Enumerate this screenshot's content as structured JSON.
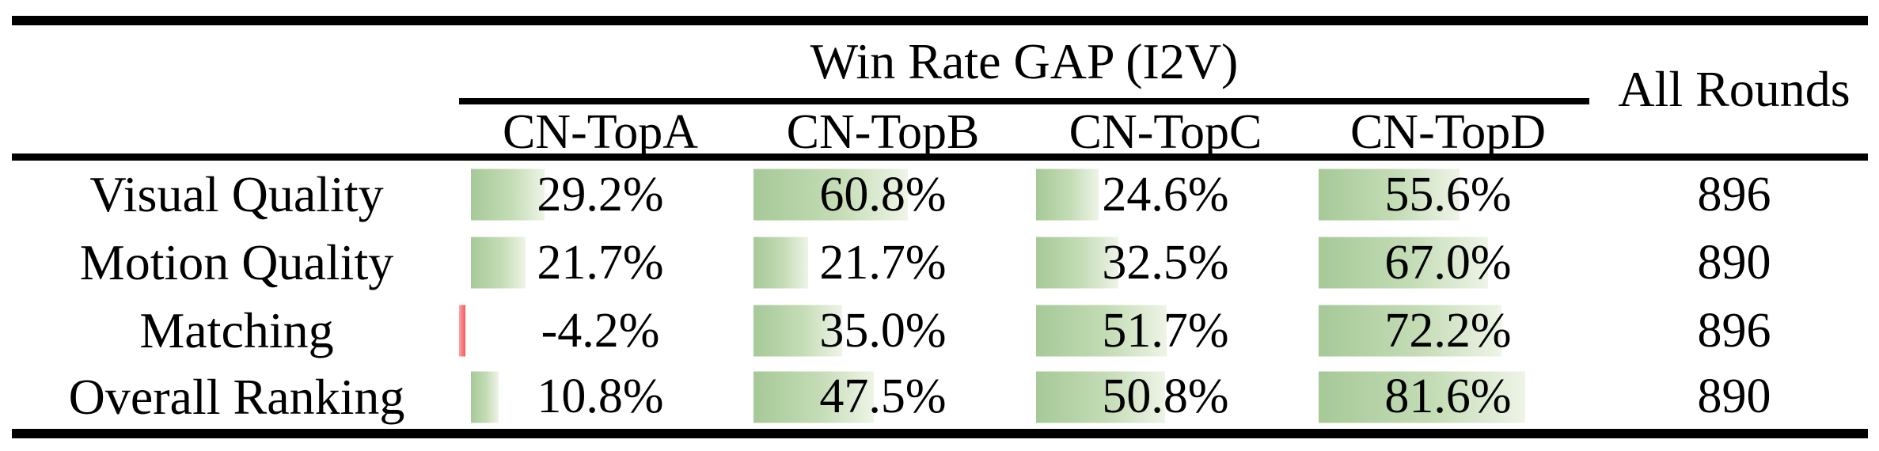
{
  "figure": {
    "group_header": "Win Rate GAP (I2V)",
    "all_rounds_header": "All Rounds",
    "method_columns": [
      "CN-TopA",
      "CN-TopB",
      "CN-TopC",
      "CN-TopD"
    ],
    "rows": [
      {
        "label": "Visual Quality",
        "values": [
          29.2,
          60.8,
          24.6,
          55.6
        ],
        "display": [
          "29.2%",
          "60.8%",
          "24.6%",
          "55.6%"
        ],
        "all_rounds": "896"
      },
      {
        "label": "Motion Quality",
        "values": [
          21.7,
          21.7,
          32.5,
          67.0
        ],
        "display": [
          "21.7%",
          "21.7%",
          "32.5%",
          "67.0%"
        ],
        "all_rounds": "890"
      },
      {
        "label": "Matching",
        "values": [
          -4.2,
          35.0,
          51.7,
          72.2
        ],
        "display": [
          "-4.2%",
          "35.0%",
          "51.7%",
          "72.2%"
        ],
        "all_rounds": "896"
      },
      {
        "label": "Overall Ranking",
        "values": [
          10.8,
          47.5,
          50.8,
          81.6
        ],
        "display": [
          "10.8%",
          "47.5%",
          "50.8%",
          "81.6%"
        ],
        "all_rounds": "890"
      }
    ],
    "colors": {
      "background": "#ffffff",
      "text": "#000000",
      "rule": "#000000",
      "bar_positive_start": "#a6c998",
      "bar_positive_end": "#eef4e7",
      "bar_negative_light": "#fba4a6",
      "bar_negative_dark": "#f8575b"
    }
  },
  "chart_data": {
    "type": "table",
    "title": "Win Rate GAP (I2V)",
    "columns": [
      "",
      "CN-TopA",
      "CN-TopB",
      "CN-TopC",
      "CN-TopD",
      "All Rounds"
    ],
    "rows": [
      [
        "Visual Quality",
        "29.2%",
        "60.8%",
        "24.6%",
        "55.6%",
        "896"
      ],
      [
        "Motion Quality",
        "21.7%",
        "21.7%",
        "32.5%",
        "67.0%",
        "890"
      ],
      [
        "Matching",
        "-4.2%",
        "35.0%",
        "51.7%",
        "72.2%",
        "896"
      ],
      [
        "Overall Ranking",
        "10.8%",
        "47.5%",
        "50.8%",
        "81.6%",
        "890"
      ]
    ],
    "notes": "Green horizontal bars embedded in cells encode positive win-rate gap magnitude; thin red bar encodes the negative value (-4.2%). Bars start at the left edge of each method column.",
    "series": [
      {
        "name": "CN-TopA",
        "values": [
          29.2,
          21.7,
          -4.2,
          10.8
        ]
      },
      {
        "name": "CN-TopB",
        "values": [
          60.8,
          21.7,
          35.0,
          47.5
        ]
      },
      {
        "name": "CN-TopC",
        "values": [
          24.6,
          32.5,
          51.7,
          50.8
        ]
      },
      {
        "name": "CN-TopD",
        "values": [
          55.6,
          67.0,
          72.2,
          81.6
        ]
      }
    ],
    "categories": [
      "Visual Quality",
      "Motion Quality",
      "Matching",
      "Overall Ranking"
    ],
    "all_rounds": [
      896,
      890,
      896,
      890
    ]
  }
}
